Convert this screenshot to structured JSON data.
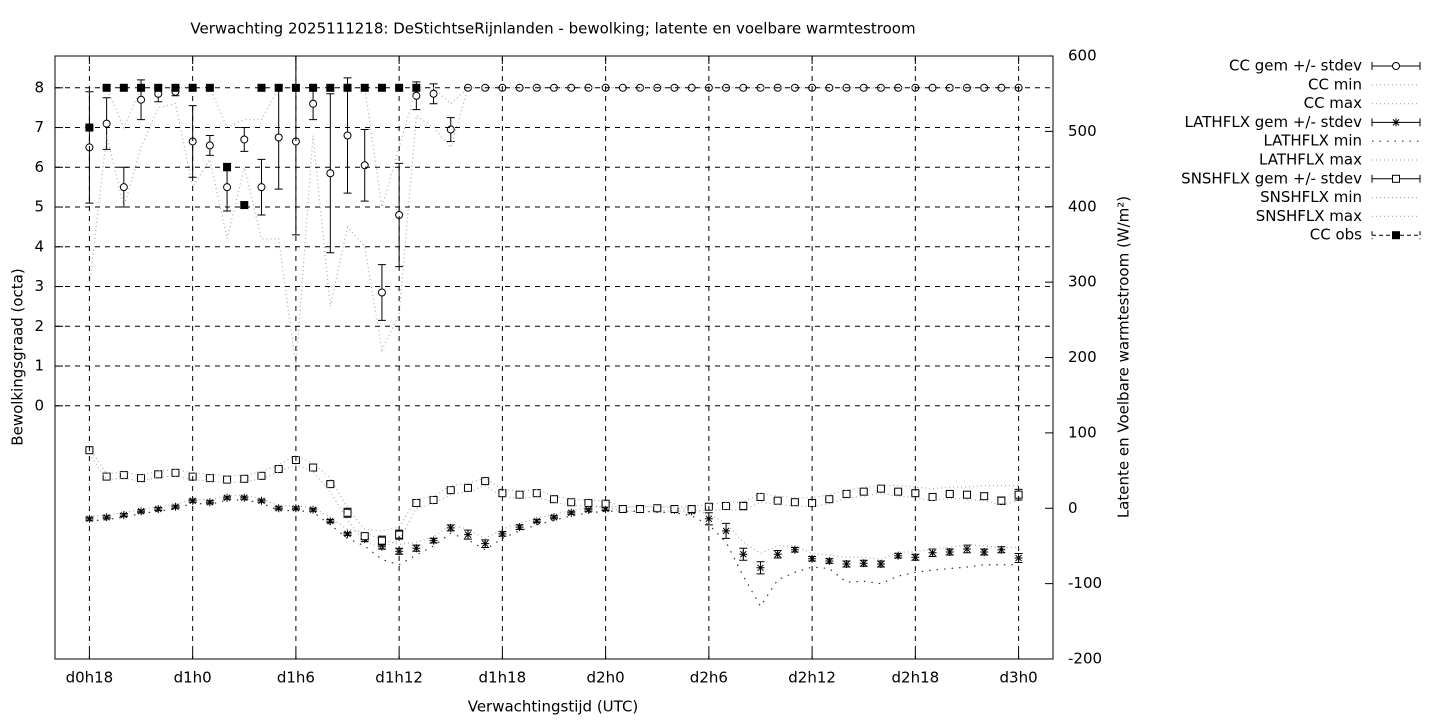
{
  "chart_data": {
    "type": "errorbar-mixed",
    "title": "Verwachting 2025111218: DeStichtseRijnlanden - bewolking; latente en voelbare warmtestroom",
    "xlabel": "Verwachtingstijd (UTC)",
    "ylabel": "Bewolkingsgraad (octa)",
    "y2label": "Latente en Voelbare warmtestroom (W/m²)",
    "x": [
      18,
      19,
      20,
      21,
      22,
      23,
      24,
      25,
      26,
      27,
      28,
      29,
      30,
      31,
      32,
      33,
      34,
      35,
      36,
      37,
      38,
      39,
      40,
      41,
      42,
      43,
      44,
      45,
      46,
      47,
      48,
      49,
      50,
      51,
      52,
      53,
      54,
      55,
      56,
      57,
      58,
      59,
      60,
      61,
      62,
      63,
      64,
      65,
      66,
      67,
      68,
      69,
      70,
      71,
      72
    ],
    "xlim": [
      16,
      74
    ],
    "xticks": [
      {
        "value": 18,
        "label": "d0h18"
      },
      {
        "value": 24,
        "label": "d1h0"
      },
      {
        "value": 30,
        "label": "d1h6"
      },
      {
        "value": 36,
        "label": "d1h12"
      },
      {
        "value": 42,
        "label": "d1h18"
      },
      {
        "value": 48,
        "label": "d2h0"
      },
      {
        "value": 54,
        "label": "d2h6"
      },
      {
        "value": 60,
        "label": "d2h12"
      },
      {
        "value": 66,
        "label": "d2h18"
      },
      {
        "value": 72,
        "label": "d3h0"
      }
    ],
    "ylim": [
      -6.37,
      8.8
    ],
    "yticks": [
      0,
      1,
      2,
      3,
      4,
      5,
      6,
      7,
      8
    ],
    "y2lim": [
      -200,
      600
    ],
    "y2ticks": [
      -200,
      -100,
      0,
      100,
      200,
      300,
      400,
      500,
      600
    ],
    "grid": true,
    "legend": "outside-right",
    "series": [
      {
        "name": "CC gem +/- stdev",
        "color": "#000000",
        "style": "errorbars",
        "marker": "circle",
        "axis": "y",
        "values": [
          6.5,
          7.1,
          5.5,
          7.7,
          7.85,
          7.9,
          6.65,
          6.55,
          5.5,
          6.7,
          5.5,
          6.75,
          6.65,
          7.6,
          5.85,
          6.8,
          6.05,
          2.85,
          4.8,
          7.8,
          7.85,
          6.95,
          8,
          8,
          8,
          8,
          8,
          8,
          8,
          8,
          8,
          8,
          8,
          8,
          8,
          8,
          8,
          8,
          8,
          8,
          8,
          8,
          8,
          8,
          8,
          8,
          8,
          8,
          8,
          8,
          8,
          8,
          8,
          8,
          8
        ],
        "errors": [
          1.4,
          0.65,
          0.5,
          0.5,
          0.2,
          0.1,
          0.9,
          0.25,
          0.6,
          0.3,
          0.7,
          1.3,
          2.35,
          0.4,
          2.0,
          1.45,
          0.9,
          0.7,
          1.3,
          0.35,
          0.25,
          0.3,
          0,
          0,
          0,
          0,
          0,
          0,
          0,
          0,
          0,
          0,
          0,
          0,
          0,
          0,
          0,
          0,
          0,
          0,
          0,
          0,
          0,
          0,
          0,
          0,
          0,
          0,
          0,
          0,
          0,
          0,
          0,
          0,
          0
        ]
      },
      {
        "name": "CC min",
        "color": "#aaaaaa",
        "style": "dotted",
        "axis": "y",
        "values": [
          3.0,
          6.8,
          5.0,
          6.5,
          7.5,
          7.6,
          5.5,
          6.2,
          4.2,
          6.0,
          4.2,
          4.2,
          1.0,
          6.8,
          2.5,
          4.5,
          4.0,
          1.4,
          2.3,
          7.3,
          7.0,
          6.5,
          8,
          8,
          8,
          8,
          8,
          8,
          8,
          8,
          8,
          8,
          8,
          8,
          8,
          8,
          8,
          8,
          8,
          8,
          8,
          8,
          8,
          8,
          8,
          8,
          8,
          8,
          8,
          8,
          8,
          8,
          8,
          8,
          8
        ]
      },
      {
        "name": "CC max",
        "color": "#aaaaaa",
        "style": "dotted",
        "axis": "y",
        "values": [
          8,
          8,
          7.0,
          8,
          8,
          8,
          8,
          8,
          7.0,
          7.2,
          7.2,
          8,
          8,
          8,
          8,
          8,
          8,
          5.0,
          6.5,
          8,
          8,
          7.6,
          8,
          8,
          8,
          8,
          8,
          8,
          8,
          8,
          8,
          8,
          8,
          8,
          8,
          8,
          8,
          8,
          8,
          8,
          8,
          8,
          8,
          8,
          8,
          8,
          8,
          8,
          8,
          8,
          8,
          8,
          8,
          8,
          8
        ]
      },
      {
        "name": "LATHFLX gem +/- stdev",
        "color": "#000000",
        "style": "errorbars",
        "marker": "star",
        "axis": "y2",
        "values": [
          -14,
          -12,
          -9,
          -4,
          -1,
          2,
          10,
          8,
          14,
          14,
          10,
          0,
          0,
          -2,
          -17,
          -34,
          -41,
          -51,
          -57,
          -53,
          -43,
          -26,
          -35,
          -47,
          -34,
          -25,
          -17,
          -12,
          -6,
          -2,
          -1,
          -1,
          -1,
          -1,
          -2,
          -4,
          -14,
          -30,
          -61,
          -79,
          -61,
          -55,
          -67,
          -70,
          -74,
          -73,
          -74,
          -63,
          -65,
          -59,
          -58,
          -54,
          -58,
          -55,
          -66
        ],
        "errors": [
          2,
          2,
          2,
          2,
          2,
          2,
          2,
          2,
          2,
          2,
          2,
          2,
          2,
          2,
          2,
          2,
          3,
          3,
          4,
          4,
          3,
          4,
          6,
          5,
          3,
          3,
          2,
          2,
          2,
          2,
          2,
          2,
          2,
          2,
          2,
          2,
          8,
          10,
          8,
          8,
          5,
          3,
          3,
          3,
          4,
          4,
          4,
          3,
          4,
          5,
          4,
          5,
          4,
          4,
          6
        ]
      },
      {
        "name": "LATHFLX min",
        "color": "#333333",
        "style": "sparse-dotted",
        "axis": "y2",
        "values": [
          -17,
          -15,
          -12,
          -7,
          -4,
          -1,
          7,
          5,
          11,
          11,
          7,
          -3,
          -3,
          -5,
          -22,
          -40,
          -50,
          -68,
          -75,
          -62,
          -50,
          -33,
          -42,
          -55,
          -40,
          -30,
          -22,
          -16,
          -10,
          -6,
          -4,
          -4,
          -4,
          -5,
          -6,
          -10,
          -22,
          -45,
          -90,
          -130,
          -95,
          -85,
          -78,
          -80,
          -98,
          -97,
          -100,
          -90,
          -85,
          -82,
          -80,
          -78,
          -75,
          -75,
          -75
        ]
      },
      {
        "name": "LATHFLX max",
        "color": "#aaaaaa",
        "style": "dotted",
        "axis": "y2",
        "values": [
          -11,
          -9,
          -6,
          -1,
          2,
          5,
          13,
          11,
          17,
          17,
          13,
          3,
          3,
          1,
          -12,
          -28,
          -32,
          -42,
          -48,
          -45,
          -38,
          -22,
          -28,
          -40,
          -28,
          -20,
          -13,
          -8,
          -3,
          1,
          2,
          2,
          2,
          2,
          0,
          -2,
          -8,
          -20,
          -45,
          -60,
          -50,
          -50,
          -60,
          -62,
          -65,
          -65,
          -68,
          -58,
          -58,
          -54,
          -52,
          -48,
          -50,
          -52,
          -52
        ]
      },
      {
        "name": "SNSHFLX gem +/- stdev",
        "color": "#000000",
        "style": "errorbars",
        "marker": "square",
        "axis": "y2",
        "values": [
          77,
          42,
          44,
          40,
          45,
          47,
          42,
          40,
          38,
          39,
          43,
          52,
          64,
          54,
          32,
          -6,
          -37,
          -43,
          -35,
          7,
          11,
          24,
          27,
          36,
          20,
          18,
          20,
          12,
          8,
          7,
          6,
          -1,
          -1,
          0,
          -1,
          -1,
          2,
          3,
          3,
          15,
          10,
          8,
          7,
          12,
          19,
          22,
          26,
          22,
          20,
          15,
          19,
          18,
          16,
          10,
          18
        ],
        "errors": [
          2,
          3,
          2,
          2,
          2,
          2,
          2,
          2,
          2,
          2,
          2,
          2,
          2,
          2,
          2,
          6,
          3,
          6,
          6,
          3,
          2,
          2,
          2,
          2,
          2,
          2,
          4,
          2,
          2,
          2,
          2,
          2,
          2,
          2,
          2,
          2,
          3,
          3,
          5,
          2,
          2,
          2,
          2,
          2,
          2,
          2,
          2,
          2,
          2,
          2,
          2,
          3,
          4,
          5,
          7
        ]
      },
      {
        "name": "SNSHFLX min",
        "color": "#aaaaaa",
        "style": "dotted",
        "axis": "y2",
        "values": [
          72,
          38,
          40,
          36,
          41,
          43,
          38,
          36,
          34,
          35,
          39,
          48,
          58,
          48,
          22,
          -16,
          -45,
          -52,
          -42,
          0,
          6,
          18,
          22,
          30,
          15,
          13,
          15,
          8,
          4,
          3,
          2,
          -4,
          -4,
          -3,
          -4,
          -4,
          -2,
          -2,
          -3,
          8,
          5,
          3,
          2,
          6,
          13,
          16,
          20,
          16,
          14,
          10,
          13,
          12,
          10,
          4,
          10
        ]
      },
      {
        "name": "SNSHFLX max",
        "color": "#aaaaaa",
        "style": "dotted",
        "axis": "y2",
        "values": [
          80,
          46,
          48,
          44,
          49,
          51,
          47,
          45,
          43,
          44,
          48,
          58,
          70,
          60,
          40,
          0,
          -28,
          -30,
          -25,
          12,
          16,
          30,
          33,
          40,
          25,
          23,
          25,
          16,
          12,
          11,
          10,
          2,
          2,
          3,
          2,
          2,
          5,
          8,
          8,
          20,
          16,
          14,
          14,
          18,
          24,
          28,
          30,
          30,
          28,
          26,
          28,
          28,
          30,
          30,
          30
        ]
      },
      {
        "name": "CC obs",
        "color": "#000000",
        "style": "points",
        "marker": "filled-square",
        "axis": "y",
        "values": [
          7.0,
          8,
          8,
          8,
          8,
          8,
          8,
          8,
          6.0,
          5.05,
          8,
          8,
          8,
          8,
          8,
          8,
          8,
          8,
          8,
          8,
          null,
          null,
          null,
          null,
          null,
          null,
          null,
          null,
          null,
          null,
          null,
          null,
          null,
          null,
          null,
          null,
          null,
          null,
          null,
          null,
          null,
          null,
          null,
          null,
          null,
          null,
          null,
          null,
          null,
          null,
          null,
          null,
          null,
          null,
          null
        ]
      }
    ]
  }
}
